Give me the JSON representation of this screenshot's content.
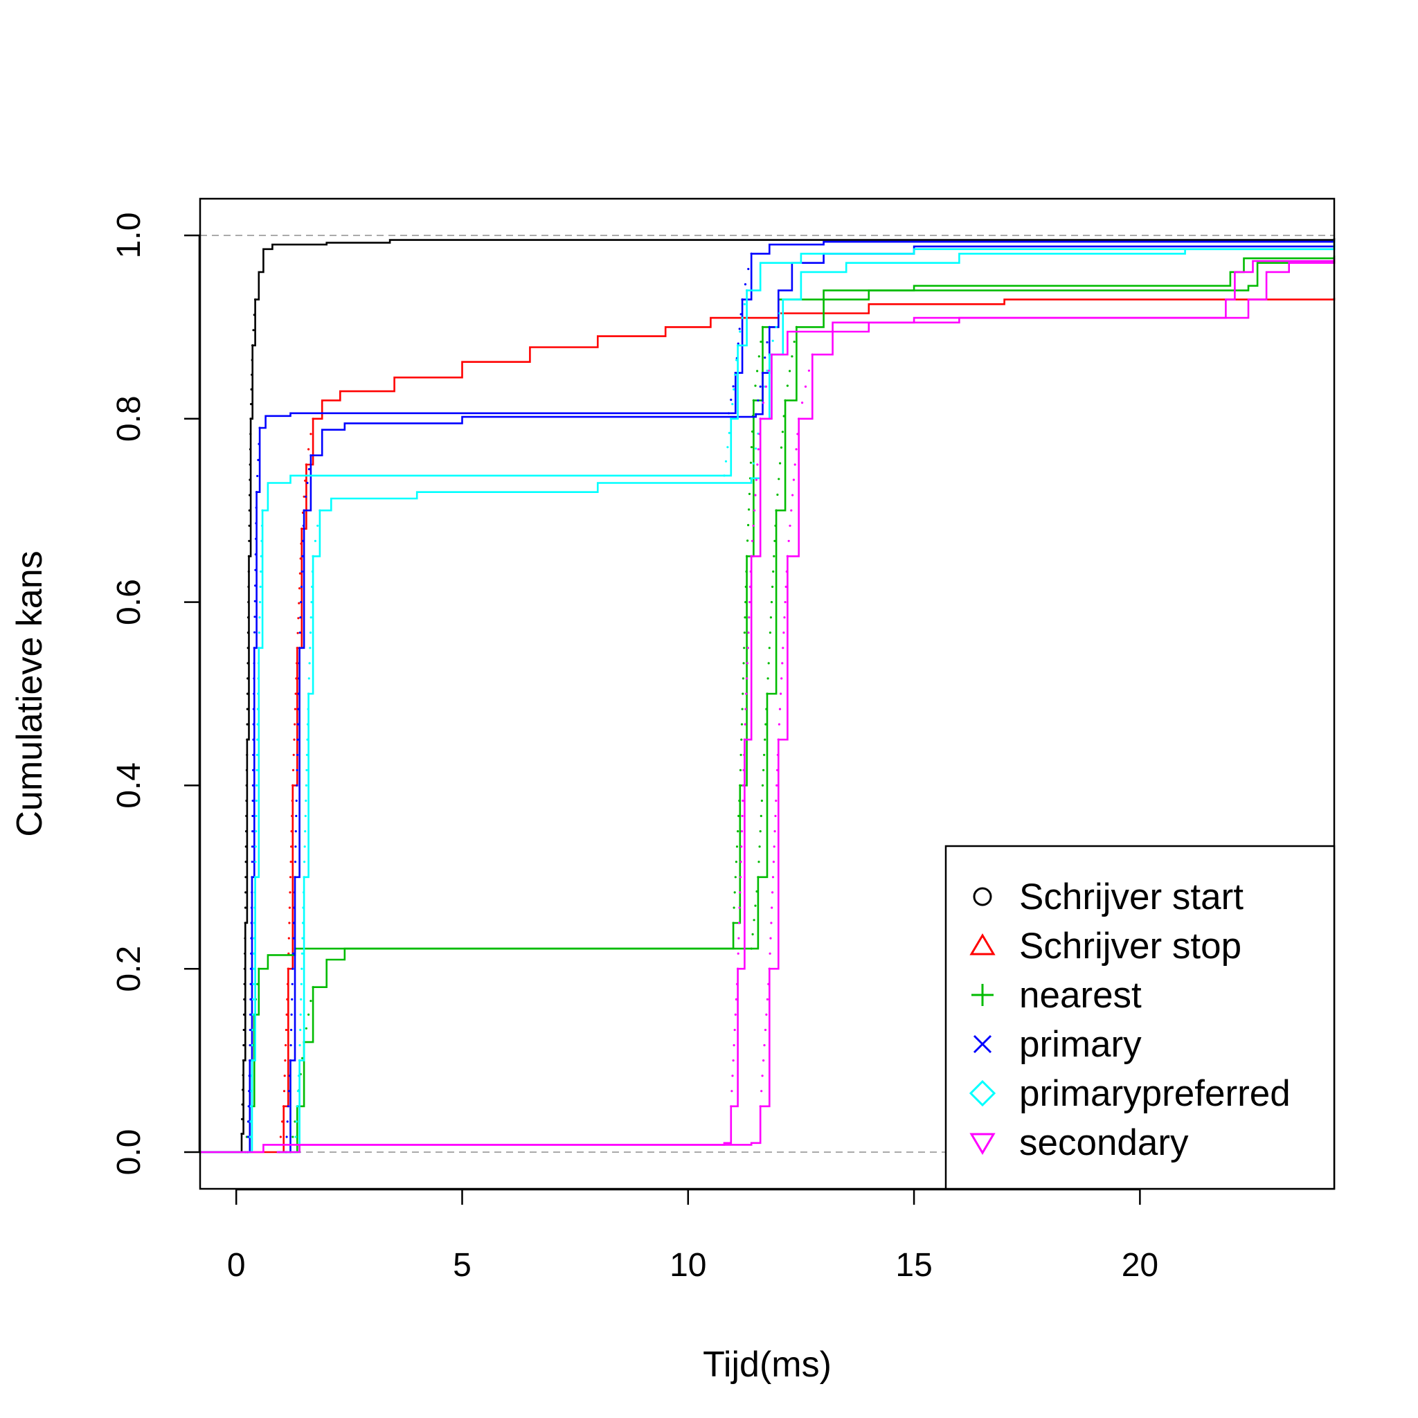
{
  "chart_data": {
    "type": "line",
    "title": "",
    "xlabel": "Tijd(ms)",
    "ylabel": "Cumulatieve kans",
    "xlim": [
      -0.8,
      24.3
    ],
    "ylim": [
      -0.04,
      1.04
    ],
    "x_ticks": [
      0,
      5,
      10,
      15,
      20
    ],
    "x_tick_labels": [
      "0",
      "5",
      "10",
      "15",
      "20"
    ],
    "y_ticks": [
      0,
      0.2,
      0.4,
      0.6,
      0.8,
      1.0
    ],
    "y_tick_labels": [
      "0.0",
      "0.2",
      "0.4",
      "0.6",
      "0.8",
      "1.0"
    ],
    "reference_lines": [
      0,
      1
    ],
    "grid": false,
    "legend_position": "bottom-right",
    "series": [
      {
        "name": "Schrijver start",
        "symbol": "circle",
        "color": "#000000",
        "groups": [
          [
            [
              -0.8,
              0
            ],
            [
              0.08,
              0
            ],
            [
              0.12,
              0.02
            ],
            [
              0.16,
              0.1
            ],
            [
              0.2,
              0.25
            ],
            [
              0.24,
              0.45
            ],
            [
              0.28,
              0.65
            ],
            [
              0.32,
              0.8
            ],
            [
              0.36,
              0.88
            ],
            [
              0.42,
              0.93
            ],
            [
              0.5,
              0.96
            ],
            [
              0.6,
              0.985
            ],
            [
              0.8,
              0.99
            ],
            [
              2,
              0.992
            ],
            [
              3.4,
              0.995
            ],
            [
              24.3,
              0.997
            ]
          ]
        ]
      },
      {
        "name": "Schrijver stop",
        "symbol": "triangle-up",
        "color": "#ff0000",
        "groups": [
          [
            [
              -0.8,
              0
            ],
            [
              0.95,
              0
            ],
            [
              1.05,
              0.05
            ],
            [
              1.15,
              0.2
            ],
            [
              1.25,
              0.4
            ],
            [
              1.35,
              0.55
            ],
            [
              1.45,
              0.68
            ],
            [
              1.55,
              0.75
            ],
            [
              1.7,
              0.8
            ],
            [
              1.9,
              0.82
            ],
            [
              2.3,
              0.83
            ],
            [
              3.5,
              0.845
            ],
            [
              5,
              0.862
            ],
            [
              6.5,
              0.878
            ],
            [
              8,
              0.89
            ],
            [
              9.5,
              0.9
            ],
            [
              10.5,
              0.91
            ],
            [
              12,
              0.915
            ],
            [
              14,
              0.925
            ],
            [
              17,
              0.93
            ],
            [
              24.3,
              0.932
            ]
          ]
        ]
      },
      {
        "name": "nearest",
        "symbol": "plus",
        "color": "#00bb00",
        "groups": [
          [
            [
              -0.8,
              0
            ],
            [
              0.2,
              0
            ],
            [
              0.3,
              0.05
            ],
            [
              0.4,
              0.15
            ],
            [
              0.5,
              0.2
            ],
            [
              0.7,
              0.215
            ],
            [
              1.3,
              0.222
            ],
            [
              10.8,
              0.222
            ],
            [
              11.0,
              0.25
            ],
            [
              11.15,
              0.4
            ],
            [
              11.3,
              0.65
            ],
            [
              11.45,
              0.82
            ],
            [
              11.65,
              0.9
            ],
            [
              12.0,
              0.93
            ],
            [
              13.0,
              0.94
            ],
            [
              15,
              0.945
            ],
            [
              21.8,
              0.945
            ],
            [
              22.0,
              0.96
            ],
            [
              22.3,
              0.975
            ],
            [
              24.3,
              0.978
            ]
          ],
          [
            [
              0.9,
              0
            ],
            [
              1.2,
              0
            ],
            [
              1.35,
              0.05
            ],
            [
              1.5,
              0.12
            ],
            [
              1.7,
              0.18
            ],
            [
              2.0,
              0.21
            ],
            [
              2.4,
              0.222
            ],
            [
              11.4,
              0.222
            ],
            [
              11.55,
              0.3
            ],
            [
              11.75,
              0.5
            ],
            [
              11.95,
              0.7
            ],
            [
              12.15,
              0.82
            ],
            [
              12.4,
              0.9
            ],
            [
              13.0,
              0.93
            ],
            [
              14,
              0.94
            ],
            [
              22.4,
              0.945
            ],
            [
              22.6,
              0.97
            ],
            [
              24.3,
              0.975
            ]
          ]
        ]
      },
      {
        "name": "primary",
        "symbol": "x",
        "color": "#0000ff",
        "groups": [
          [
            [
              -0.8,
              0
            ],
            [
              0.25,
              0
            ],
            [
              0.3,
              0.1
            ],
            [
              0.35,
              0.3
            ],
            [
              0.4,
              0.55
            ],
            [
              0.45,
              0.72
            ],
            [
              0.52,
              0.79
            ],
            [
              0.65,
              0.803
            ],
            [
              1.2,
              0.806
            ],
            [
              10.9,
              0.806
            ],
            [
              11.05,
              0.85
            ],
            [
              11.2,
              0.93
            ],
            [
              11.4,
              0.98
            ],
            [
              11.8,
              0.99
            ],
            [
              13,
              0.993
            ],
            [
              24.3,
              0.995
            ]
          ],
          [
            [
              0.9,
              0
            ],
            [
              1.1,
              0
            ],
            [
              1.2,
              0.1
            ],
            [
              1.3,
              0.3
            ],
            [
              1.4,
              0.55
            ],
            [
              1.5,
              0.7
            ],
            [
              1.65,
              0.76
            ],
            [
              1.9,
              0.788
            ],
            [
              2.4,
              0.795
            ],
            [
              5,
              0.802
            ],
            [
              11.5,
              0.805
            ],
            [
              11.65,
              0.85
            ],
            [
              11.8,
              0.9
            ],
            [
              12.0,
              0.94
            ],
            [
              12.3,
              0.97
            ],
            [
              13,
              0.98
            ],
            [
              15,
              0.988
            ],
            [
              24.3,
              0.99
            ]
          ]
        ]
      },
      {
        "name": "primarypreferred",
        "symbol": "diamond",
        "color": "#00ffff",
        "groups": [
          [
            [
              -0.8,
              0
            ],
            [
              0.3,
              0
            ],
            [
              0.35,
              0.1
            ],
            [
              0.42,
              0.3
            ],
            [
              0.5,
              0.55
            ],
            [
              0.58,
              0.7
            ],
            [
              0.7,
              0.73
            ],
            [
              1.2,
              0.738
            ],
            [
              10.8,
              0.738
            ],
            [
              10.95,
              0.8
            ],
            [
              11.1,
              0.88
            ],
            [
              11.3,
              0.94
            ],
            [
              11.6,
              0.97
            ],
            [
              12.5,
              0.98
            ],
            [
              15,
              0.985
            ],
            [
              24.3,
              0.995
            ]
          ],
          [
            [
              0.9,
              0
            ],
            [
              1.3,
              0
            ],
            [
              1.4,
              0.1
            ],
            [
              1.5,
              0.3
            ],
            [
              1.6,
              0.5
            ],
            [
              1.7,
              0.65
            ],
            [
              1.85,
              0.7
            ],
            [
              2.1,
              0.713
            ],
            [
              4,
              0.72
            ],
            [
              8,
              0.73
            ],
            [
              11.4,
              0.735
            ],
            [
              11.6,
              0.8
            ],
            [
              11.8,
              0.87
            ],
            [
              12.1,
              0.93
            ],
            [
              12.5,
              0.96
            ],
            [
              13.5,
              0.97
            ],
            [
              16,
              0.98
            ],
            [
              21,
              0.985
            ],
            [
              24.3,
              0.99
            ]
          ]
        ]
      },
      {
        "name": "secondary",
        "symbol": "triangle-down",
        "color": "#ff00ff",
        "groups": [
          [
            [
              -0.8,
              0
            ],
            [
              0.4,
              0
            ],
            [
              0.6,
              0.008
            ],
            [
              10.8,
              0.01
            ],
            [
              10.95,
              0.05
            ],
            [
              11.1,
              0.2
            ],
            [
              11.25,
              0.45
            ],
            [
              11.4,
              0.65
            ],
            [
              11.6,
              0.8
            ],
            [
              11.85,
              0.87
            ],
            [
              12.2,
              0.895
            ],
            [
              13.2,
              0.905
            ],
            [
              15,
              0.91
            ],
            [
              21.7,
              0.91
            ],
            [
              21.9,
              0.93
            ],
            [
              22.1,
              0.96
            ],
            [
              22.5,
              0.972
            ],
            [
              24.3,
              0.975
            ]
          ],
          [
            [
              0.9,
              0
            ],
            [
              1.2,
              0
            ],
            [
              1.4,
              0.008
            ],
            [
              11.4,
              0.01
            ],
            [
              11.6,
              0.05
            ],
            [
              11.8,
              0.2
            ],
            [
              12.0,
              0.45
            ],
            [
              12.2,
              0.65
            ],
            [
              12.45,
              0.8
            ],
            [
              12.75,
              0.87
            ],
            [
              13.2,
              0.895
            ],
            [
              14,
              0.905
            ],
            [
              16,
              0.91
            ],
            [
              22.1,
              0.91
            ],
            [
              22.4,
              0.93
            ],
            [
              22.8,
              0.96
            ],
            [
              23.3,
              0.97
            ],
            [
              24.3,
              0.975
            ]
          ]
        ]
      }
    ]
  }
}
